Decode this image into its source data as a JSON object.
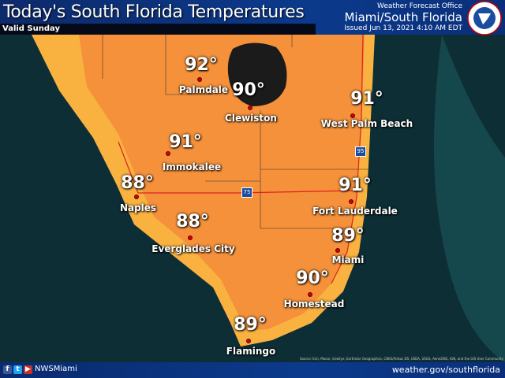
{
  "header": {
    "title": "Today's South Florida Temperatures",
    "valid": "Valid Sunday",
    "office": "Weather Forecast Office",
    "region": "Miami/South Florida",
    "issued": "Issued Jun 13, 2021 4:10 AM EDT"
  },
  "logo": {
    "text": "NATIONAL WEATHER SERVICE"
  },
  "colors": {
    "land_hot": "#f5913a",
    "land_warm": "#f9b13f",
    "water": "#0e3a40",
    "lake": "#1a1a1a",
    "header": "#0b3a8c"
  },
  "highways": [
    "75",
    "95"
  ],
  "stations": [
    {
      "city": "Palmdale",
      "temp": "92°"
    },
    {
      "city": "Clewiston",
      "temp": "90°"
    },
    {
      "city": "West Palm Beach",
      "temp": "91°"
    },
    {
      "city": "Immokalee",
      "temp": "91°"
    },
    {
      "city": "Naples",
      "temp": "88°"
    },
    {
      "city": "Everglades City",
      "temp": "88°"
    },
    {
      "city": "Fort Lauderdale",
      "temp": "91°"
    },
    {
      "city": "Miami",
      "temp": "89°"
    },
    {
      "city": "Homestead",
      "temp": "90°"
    },
    {
      "city": "Flamingo",
      "temp": "89°"
    }
  ],
  "attribution": "Source: Esri, Maxar, GeoEye, Earthstar Geographics, CNES/Airbus DS, USDA, USGS, AeroGRID, IGN, and the GIS User Community",
  "footer": {
    "handle": "NWSMiami",
    "website": "weather.gov/southflorida",
    "social": [
      "facebook-icon",
      "twitter-icon",
      "youtube-icon"
    ]
  }
}
